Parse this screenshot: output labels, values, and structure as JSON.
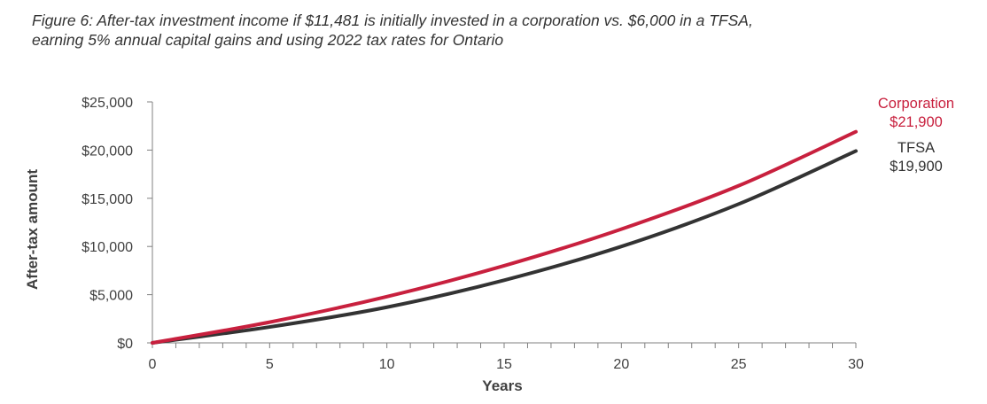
{
  "caption": {
    "line1": "Figure 6: After-tax investment income if $11,481 is initially invested in a corporation vs. $6,000 in a TFSA,",
    "line2": "earning 5% annual capital gains and using 2022 tax rates for Ontario"
  },
  "colors": {
    "corporation": "#c8203e",
    "tfsa": "#333333",
    "axis": "#808080"
  },
  "chart_data": {
    "type": "line",
    "xlabel": "Years",
    "ylabel": "After-tax amount",
    "xlim": [
      0,
      30
    ],
    "ylim": [
      0,
      25000
    ],
    "x_ticks": [
      0,
      5,
      10,
      15,
      20,
      25,
      30
    ],
    "x_minor_step": 1,
    "y_ticks": [
      0,
      5000,
      10000,
      15000,
      20000,
      25000
    ],
    "y_tick_labels": [
      "$0",
      "$5,000",
      "$10,000",
      "$15,000",
      "$20,000",
      "$25,000"
    ],
    "grid": false,
    "legend": "none",
    "x": [
      0,
      5,
      10,
      15,
      20,
      25,
      30
    ],
    "series": [
      {
        "name": "Corporation",
        "end_label": "$21,900",
        "values": [
          0,
          2150,
          4800,
          8000,
          11800,
          16300,
          21900
        ]
      },
      {
        "name": "TFSA",
        "end_label": "$19,900",
        "values": [
          0,
          1650,
          3700,
          6500,
          10000,
          14400,
          19900
        ]
      }
    ]
  }
}
